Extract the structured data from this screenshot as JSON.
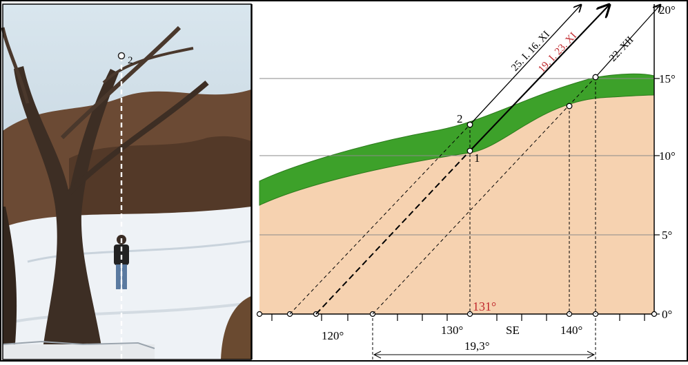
{
  "photo": {
    "point_label": "2"
  },
  "diagram": {
    "y_ticks": [
      "0°",
      "5°",
      "10°",
      "15°",
      "20°"
    ],
    "x_ticks": [
      "120°",
      "130°",
      "SE",
      "140°"
    ],
    "point_labels": {
      "p1": "1",
      "p2": "2"
    },
    "ray_labels": {
      "r1": "25. I. 16. XI",
      "r2": "19. I. 23. XI",
      "r3": "22. XII"
    },
    "azimuth_label": "131°",
    "span_label": "19,3°",
    "colors": {
      "terrain": "#f6d2b0",
      "vegetation": "#3da12a",
      "highlight": "#c0282d",
      "frame": "#000000"
    }
  }
}
